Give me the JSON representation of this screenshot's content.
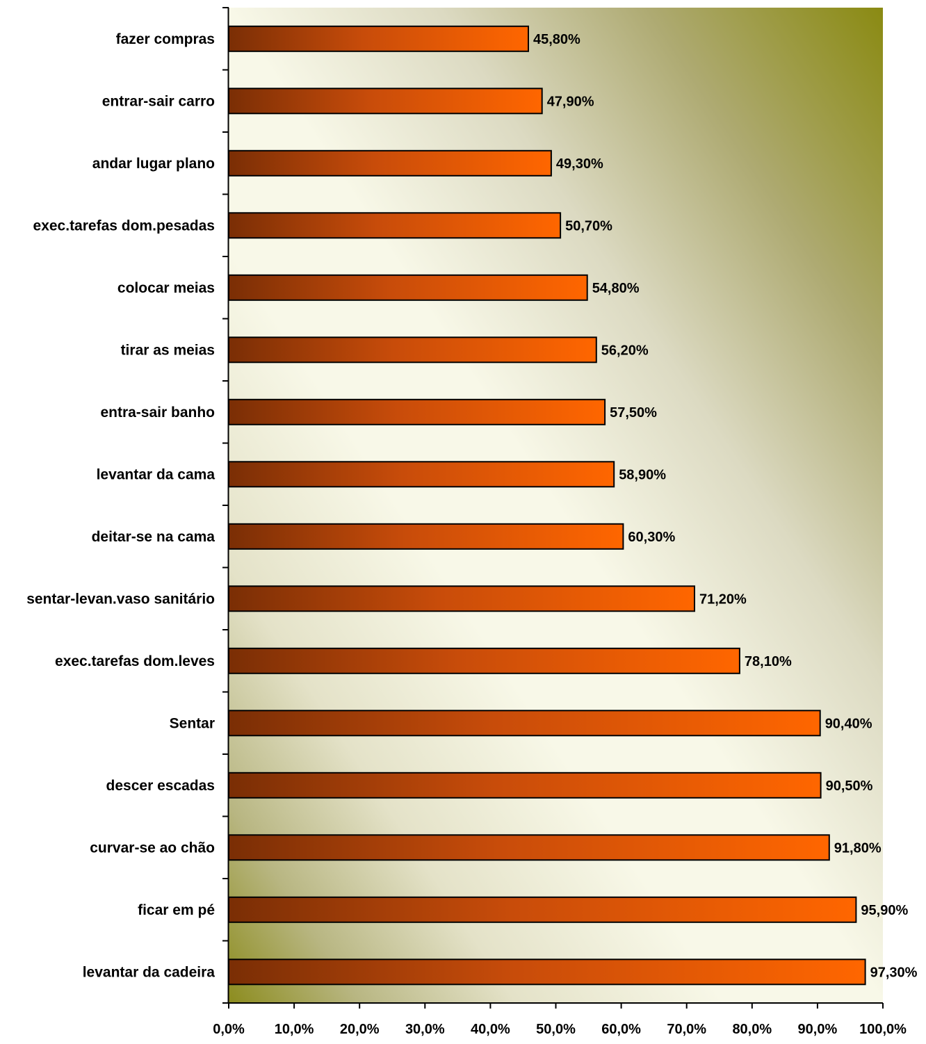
{
  "chart_data": {
    "type": "bar",
    "orientation": "horizontal",
    "title": "",
    "xlabel": "",
    "ylabel": "",
    "xlim": [
      0,
      100
    ],
    "categories": [
      "fazer compras",
      "entrar-sair carro",
      "andar lugar plano",
      "exec.tarefas dom.pesadas",
      "colocar meias",
      "tirar as meias",
      "entra-sair banho",
      "levantar da cama",
      "deitar-se na cama",
      "sentar-levan.vaso sanitário",
      "exec.tarefas dom.leves",
      "Sentar",
      "descer escadas",
      "curvar-se ao chão",
      "ficar em pé",
      "levantar da cadeira"
    ],
    "values": [
      45.8,
      47.9,
      49.3,
      50.7,
      54.8,
      56.2,
      57.5,
      58.9,
      60.3,
      71.2,
      78.1,
      90.4,
      90.5,
      91.8,
      95.9,
      97.3
    ],
    "data_labels": [
      "45,80%",
      "47,90%",
      "49,30%",
      "50,70%",
      "54,80%",
      "56,20%",
      "57,50%",
      "58,90%",
      "60,30%",
      "71,20%",
      "78,10%",
      "90,40%",
      "90,50%",
      "91,80%",
      "95,90%",
      "97,30%"
    ],
    "x_ticks": [
      0,
      10,
      20,
      30,
      40,
      50,
      60,
      70,
      80,
      90,
      100
    ],
    "x_tick_labels": [
      "0,0%",
      "10,0%",
      "20,0%",
      "30,0%",
      "40,0%",
      "50,0%",
      "60,0%",
      "70,0%",
      "80,0%",
      "90,0%",
      "100,0%"
    ],
    "grid": false,
    "legend": "none",
    "colors": {
      "bar_dark": "#7a2e05",
      "bar_light": "#ff6600",
      "plot_bg_light": "#f8f8e8",
      "plot_bg_dark": "#8a8a1a"
    }
  }
}
